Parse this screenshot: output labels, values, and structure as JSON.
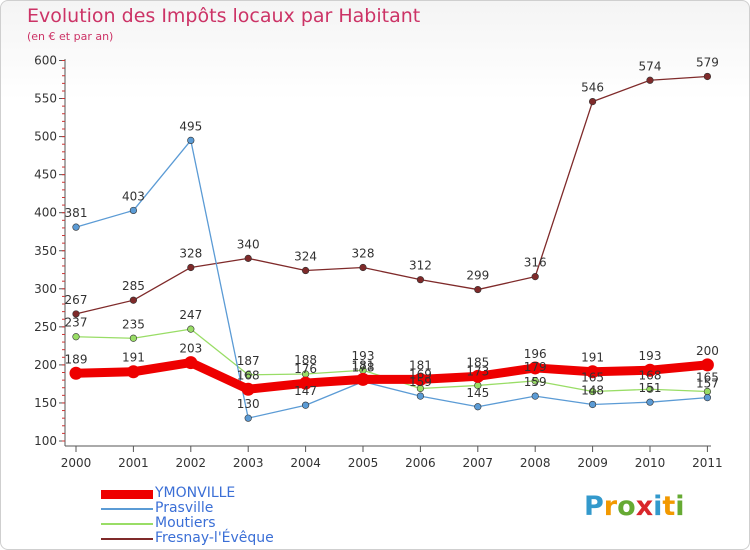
{
  "header": {
    "title": "Evolution des Impôts locaux par Habitant",
    "subtitle": "(en € et par an)"
  },
  "logo": {
    "text": "Proxiti",
    "letters": [
      "P",
      "r",
      "o",
      "x",
      "i",
      "t",
      "i"
    ],
    "colors": [
      "#3399cc",
      "#f29900",
      "#66aa33",
      "#d9262b",
      "#3399cc",
      "#f29900",
      "#66aa33"
    ]
  },
  "chart_data": {
    "type": "line",
    "title": "Evolution des Impôts locaux par Habitant",
    "subtitle": "(en € et par an)",
    "xlabel": "",
    "ylabel": "",
    "x": [
      "2000",
      "2001",
      "2002",
      "2003",
      "2004",
      "2005",
      "2006",
      "2007",
      "2008",
      "2009",
      "2010",
      "2011"
    ],
    "ylim": [
      100,
      600
    ],
    "yticks": [
      100,
      150,
      200,
      250,
      300,
      350,
      400,
      450,
      500,
      550,
      600
    ],
    "grid": false,
    "legend_position": "bottom-left",
    "series": [
      {
        "name": "Fresnay-l'Évêque",
        "color": "#7f2a2a",
        "values": [
          267,
          285,
          328,
          340,
          324,
          328,
          312,
          299,
          316,
          546,
          574,
          579
        ]
      },
      {
        "name": "Moutiers",
        "color": "#99dd66",
        "values": [
          237,
          235,
          247,
          187,
          188,
          193,
          169,
          173,
          179,
          165,
          168,
          165
        ]
      },
      {
        "name": "Prasville",
        "color": "#5b9bd5",
        "values": [
          381,
          403,
          495,
          130,
          147,
          178,
          159,
          145,
          159,
          148,
          151,
          157
        ]
      },
      {
        "name": "YMONVILLE",
        "color": "#ee0000",
        "values": [
          189,
          191,
          203,
          168,
          176,
          181,
          181,
          185,
          196,
          191,
          193,
          200
        ]
      }
    ],
    "value_labels": [
      {
        "series": "Fresnay-l'Évêque",
        "values": [
          267,
          285,
          328,
          340,
          324,
          328,
          312,
          299,
          316,
          546,
          574,
          579
        ]
      },
      {
        "series": "Moutiers",
        "values": [
          237,
          235,
          247,
          187,
          188,
          193,
          169,
          173,
          179,
          165,
          168,
          165
        ]
      },
      {
        "series": "Prasville",
        "values": [
          381,
          403,
          495,
          130,
          147,
          178,
          159,
          145,
          159,
          148,
          151,
          157
        ]
      },
      {
        "series": "YMONVILLE",
        "values": [
          189,
          191,
          203,
          168,
          176,
          181,
          181,
          185,
          196,
          191,
          193,
          200
        ]
      }
    ]
  },
  "legend": [
    {
      "name": "YMONVILLE",
      "color": "#ee0000"
    },
    {
      "name": "Prasville",
      "color": "#5b9bd5"
    },
    {
      "name": "Moutiers",
      "color": "#99dd66"
    },
    {
      "name": "Fresnay-l'Évêque",
      "color": "#7f2a2a"
    }
  ]
}
